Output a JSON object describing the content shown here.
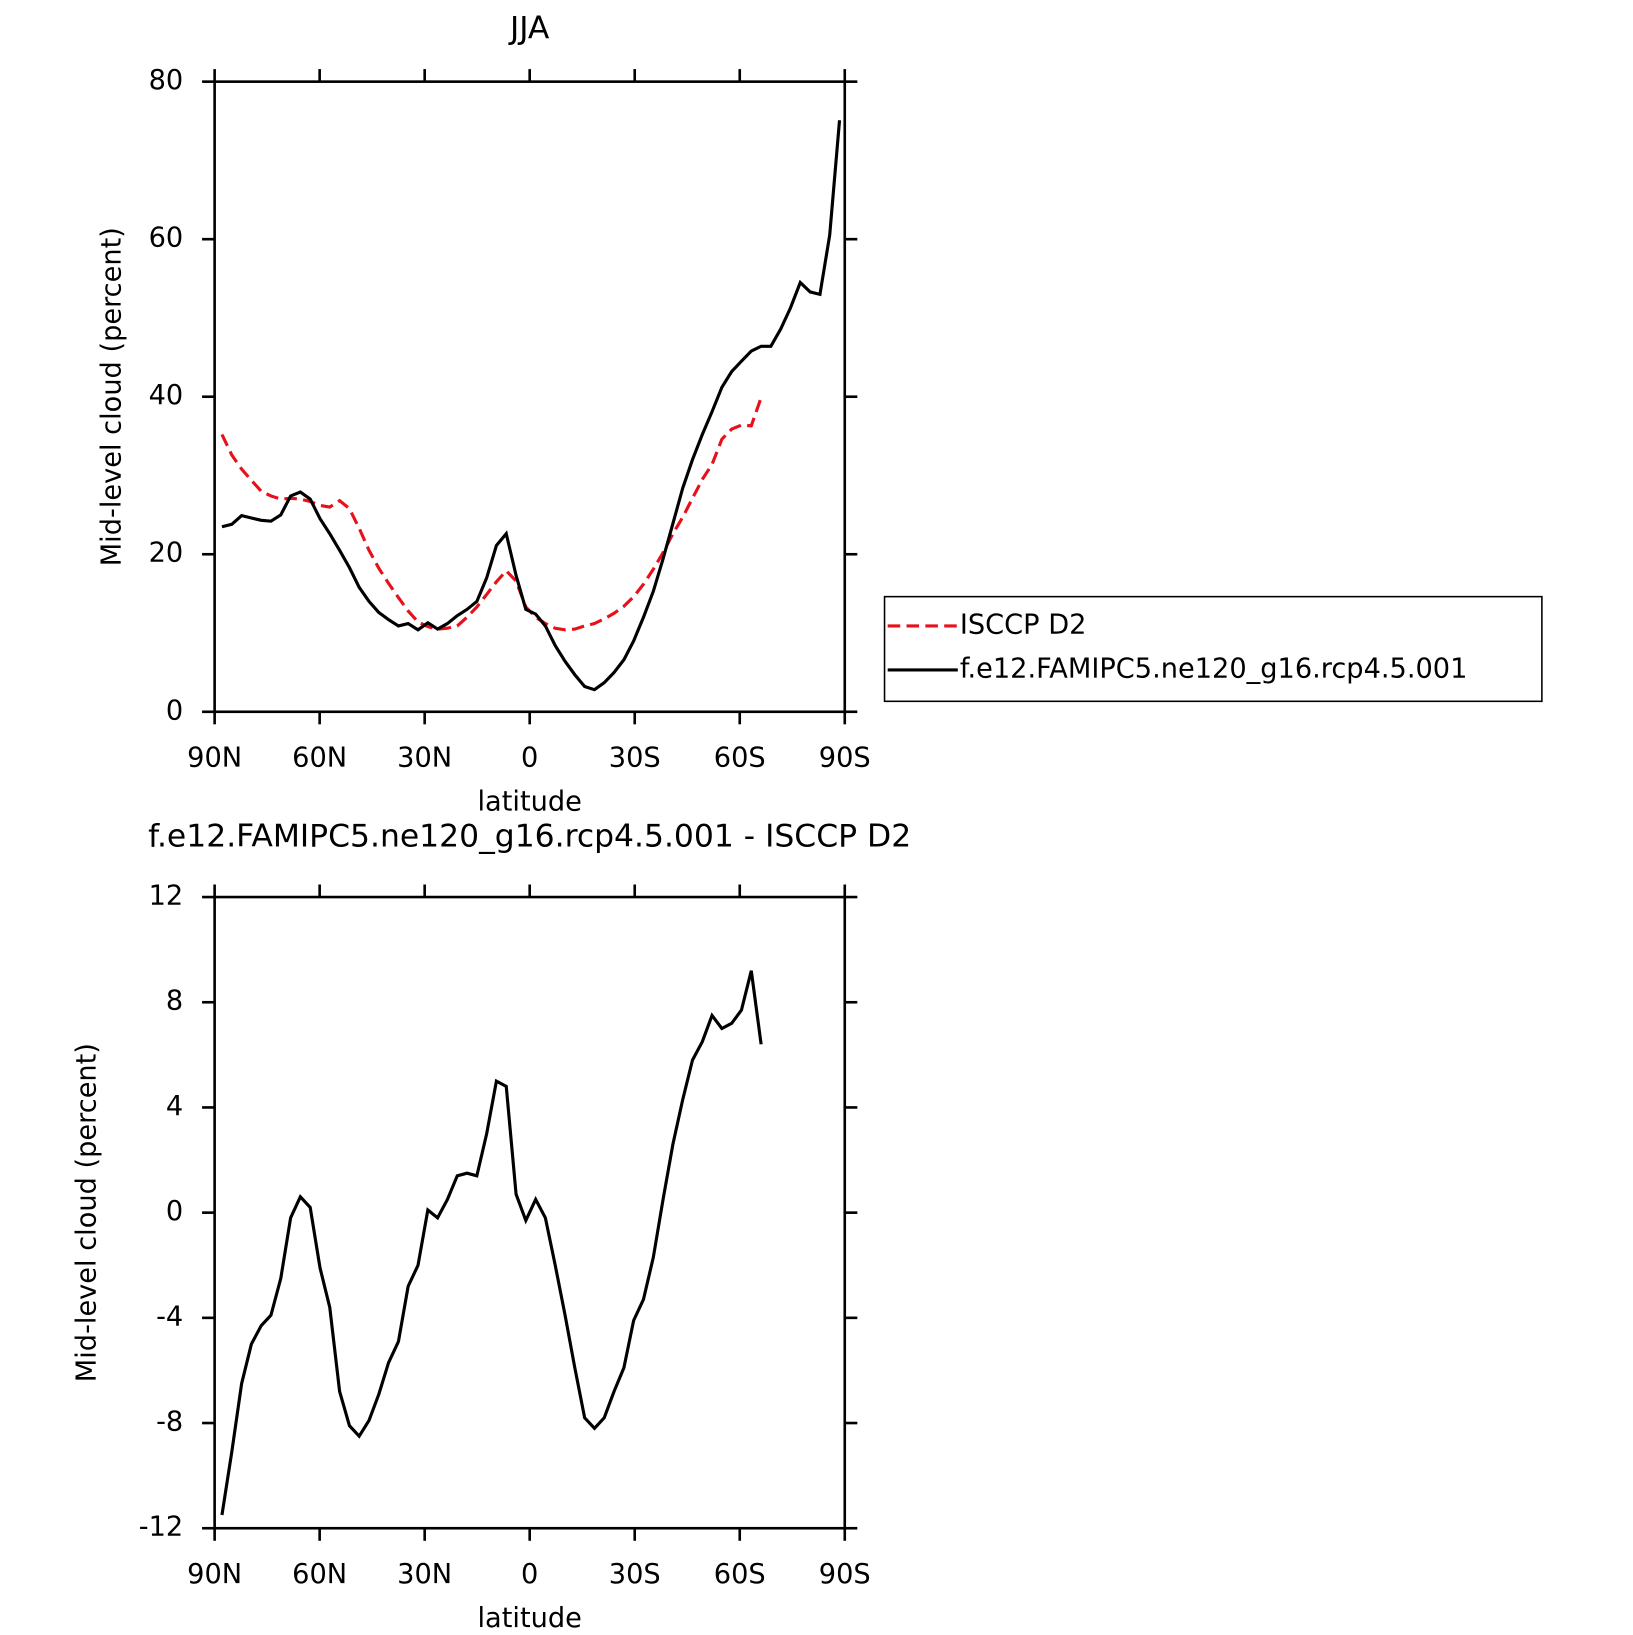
{
  "chart_data": [
    {
      "type": "line",
      "title": "JJA",
      "xlabel": "latitude",
      "ylabel": "Mid-level cloud (percent)",
      "x": [
        87.9,
        85.1,
        82.3,
        79.5,
        76.7,
        73.9,
        71.1,
        68.3,
        65.5,
        62.7,
        59.9,
        57.1,
        54.3,
        51.5,
        48.7,
        45.9,
        43.1,
        40.3,
        37.5,
        34.7,
        31.9,
        29.1,
        26.3,
        23.5,
        20.7,
        17.9,
        15.1,
        12.3,
        9.5,
        6.7,
        3.9,
        1.1,
        -1.7,
        -4.5,
        -7.3,
        -10.1,
        -12.9,
        -15.7,
        -18.5,
        -21.3,
        -24.1,
        -26.9,
        -29.7,
        -32.5,
        -35.3,
        -38.1,
        -40.9,
        -43.7,
        -46.5,
        -49.3,
        -52.1,
        -54.9,
        -57.7,
        -60.5,
        -63.3,
        -66.1,
        -68.9,
        -71.7,
        -74.5,
        -77.3,
        -80.1,
        -82.9,
        -85.7,
        -88.5
      ],
      "series": [
        {
          "name": "ISCCP D2",
          "color": "#e8101a",
          "dash": "dashed",
          "values": [
            35.2,
            32.6,
            30.8,
            29.4,
            28,
            27.4,
            27,
            27.1,
            27,
            26.7,
            26.2,
            26,
            26.8,
            25.8,
            23.3,
            20.5,
            18.2,
            16.3,
            14.5,
            12.8,
            11.4,
            10.8,
            10.5,
            10.6,
            10.9,
            12,
            13.3,
            14.9,
            16.5,
            17.9,
            16.6,
            13.3,
            12,
            11.2,
            10.6,
            10.4,
            10.5,
            10.9,
            11.2,
            11.8,
            12.5,
            13.4,
            14.6,
            16.2,
            18.1,
            20.2,
            22.6,
            24.7,
            27.1,
            29.5,
            31.4,
            34.6,
            35.9,
            36.4,
            36.3,
            39.9,
            null,
            null,
            null,
            null,
            null,
            null,
            null,
            null
          ]
        },
        {
          "name": "f.e12.FAMIPC5.ne120_g16.rcp4.5.001",
          "color": "#000000",
          "dash": "solid",
          "values": [
            23.5,
            23.8,
            24.9,
            24.6,
            24.3,
            24.2,
            25,
            27.4,
            27.9,
            27,
            24.5,
            22.6,
            20.5,
            18.3,
            15.8,
            14,
            12.6,
            11.7,
            10.9,
            11.2,
            10.4,
            11.3,
            10.5,
            11.2,
            12.2,
            13,
            14,
            17,
            21.1,
            22.6,
            17.3,
            13,
            12.4,
            10.9,
            8.4,
            6.4,
            4.7,
            3.2,
            2.8,
            3.7,
            5,
            6.6,
            9,
            12,
            15.3,
            19.4,
            23.9,
            28.4,
            32,
            35.2,
            38.1,
            41.2,
            43.2,
            44.5,
            45.8,
            46.4,
            46.4,
            48.6,
            51.3,
            54.5,
            53.3,
            53,
            60.5,
            75.1
          ]
        }
      ],
      "xlim": [
        90,
        -90
      ],
      "xticks": [
        {
          "value": 90,
          "label": "90N"
        },
        {
          "value": 60,
          "label": "60N"
        },
        {
          "value": 30,
          "label": "30N"
        },
        0,
        {
          "value": -30,
          "label": "30S"
        },
        {
          "value": -60,
          "label": "60S"
        },
        {
          "value": -90,
          "label": "90S"
        }
      ],
      "ylim": [
        0,
        80
      ],
      "yticks": [
        0,
        20,
        40,
        60,
        80
      ],
      "legend": "right"
    },
    {
      "type": "line",
      "title": "f.e12.FAMIPC5.ne120_g16.rcp4.5.001 - ISCCP D2",
      "xlabel": "latitude",
      "ylabel": "Mid-level cloud (percent)",
      "x": [
        87.9,
        85.1,
        82.3,
        79.5,
        76.7,
        73.9,
        71.1,
        68.3,
        65.5,
        62.7,
        59.9,
        57.1,
        54.3,
        51.5,
        48.7,
        45.9,
        43.1,
        40.3,
        37.5,
        34.7,
        31.9,
        29.1,
        26.3,
        23.5,
        20.7,
        17.9,
        15.1,
        12.3,
        9.5,
        6.7,
        3.9,
        1.1,
        -1.7,
        -4.5,
        -7.3,
        -10.1,
        -12.9,
        -15.7,
        -18.5,
        -21.3,
        -24.1,
        -26.9,
        -29.7,
        -32.5,
        -35.3,
        -38.1,
        -40.9,
        -43.7,
        -46.5,
        -49.3,
        -52.1,
        -54.9,
        -57.7,
        -60.5,
        -63.3,
        -66.1
      ],
      "color": "#000000",
      "values": [
        -11.5,
        -9.1,
        -6.5,
        -5,
        -4.3,
        -3.9,
        -2.5,
        -0.2,
        0.6,
        0.2,
        -2.1,
        -3.6,
        -6.8,
        -8.1,
        -8.5,
        -7.9,
        -6.9,
        -5.7,
        -4.9,
        -2.8,
        -2,
        0.1,
        -0.2,
        0.5,
        1.4,
        1.5,
        1.4,
        3,
        5,
        4.8,
        0.7,
        -0.3,
        0.5,
        -0.2,
        -2,
        -3.9,
        -5.9,
        -7.8,
        -8.2,
        -7.8,
        -6.8,
        -5.9,
        -4.1,
        -3.3,
        -1.7,
        0.5,
        2.6,
        4.3,
        5.8,
        6.5,
        7.5,
        7,
        7.2,
        7.7,
        9.2,
        6.4
      ],
      "xlim": [
        90,
        -90
      ],
      "xticks": [
        {
          "value": 90,
          "label": "90N"
        },
        {
          "value": 60,
          "label": "60N"
        },
        {
          "value": 30,
          "label": "30N"
        },
        0,
        {
          "value": -30,
          "label": "30S"
        },
        {
          "value": -60,
          "label": "60S"
        },
        {
          "value": -90,
          "label": "90S"
        }
      ],
      "ylim": [
        -12,
        12
      ],
      "yticks": [
        -12,
        -8,
        -4,
        0,
        4,
        8,
        12
      ]
    }
  ]
}
